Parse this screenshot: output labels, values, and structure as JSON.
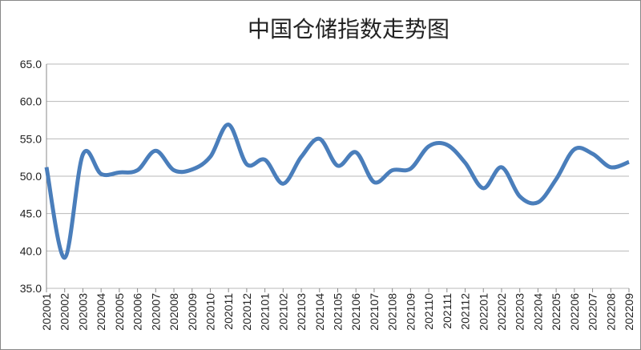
{
  "chart_data": {
    "type": "line",
    "title": "中国仓储指数走势图",
    "categories": [
      "202001",
      "202002",
      "202003",
      "202004",
      "202005",
      "202006",
      "202007",
      "202008",
      "202009",
      "202010",
      "202011",
      "202012",
      "202101",
      "202102",
      "202103",
      "202104",
      "202105",
      "202106",
      "202107",
      "202108",
      "202109",
      "202110",
      "202111",
      "202112",
      "202201",
      "202202",
      "202203",
      "202204",
      "202205",
      "202206",
      "202207",
      "202208",
      "202209"
    ],
    "values": [
      51.2,
      39.1,
      52.9,
      50.3,
      50.5,
      50.8,
      53.4,
      50.8,
      50.9,
      52.6,
      56.9,
      51.6,
      52.2,
      49.0,
      52.6,
      55.0,
      51.4,
      53.2,
      49.2,
      50.8,
      51.0,
      54.0,
      54.2,
      51.8,
      48.4,
      51.2,
      47.3,
      46.5,
      49.6,
      53.6,
      53.0,
      51.2,
      51.9
    ],
    "color": "#4a7ebb",
    "ylim": [
      35,
      65
    ],
    "yticks": [
      {
        "value": 35,
        "label": "35.0"
      },
      {
        "value": 40,
        "label": "40.0"
      },
      {
        "value": 45,
        "label": "45.0"
      },
      {
        "value": 50,
        "label": "50.0"
      },
      {
        "value": 55,
        "label": "55.0"
      },
      {
        "value": 60,
        "label": "60.0"
      },
      {
        "value": 65,
        "label": "65.0"
      }
    ],
    "grid": true
  }
}
